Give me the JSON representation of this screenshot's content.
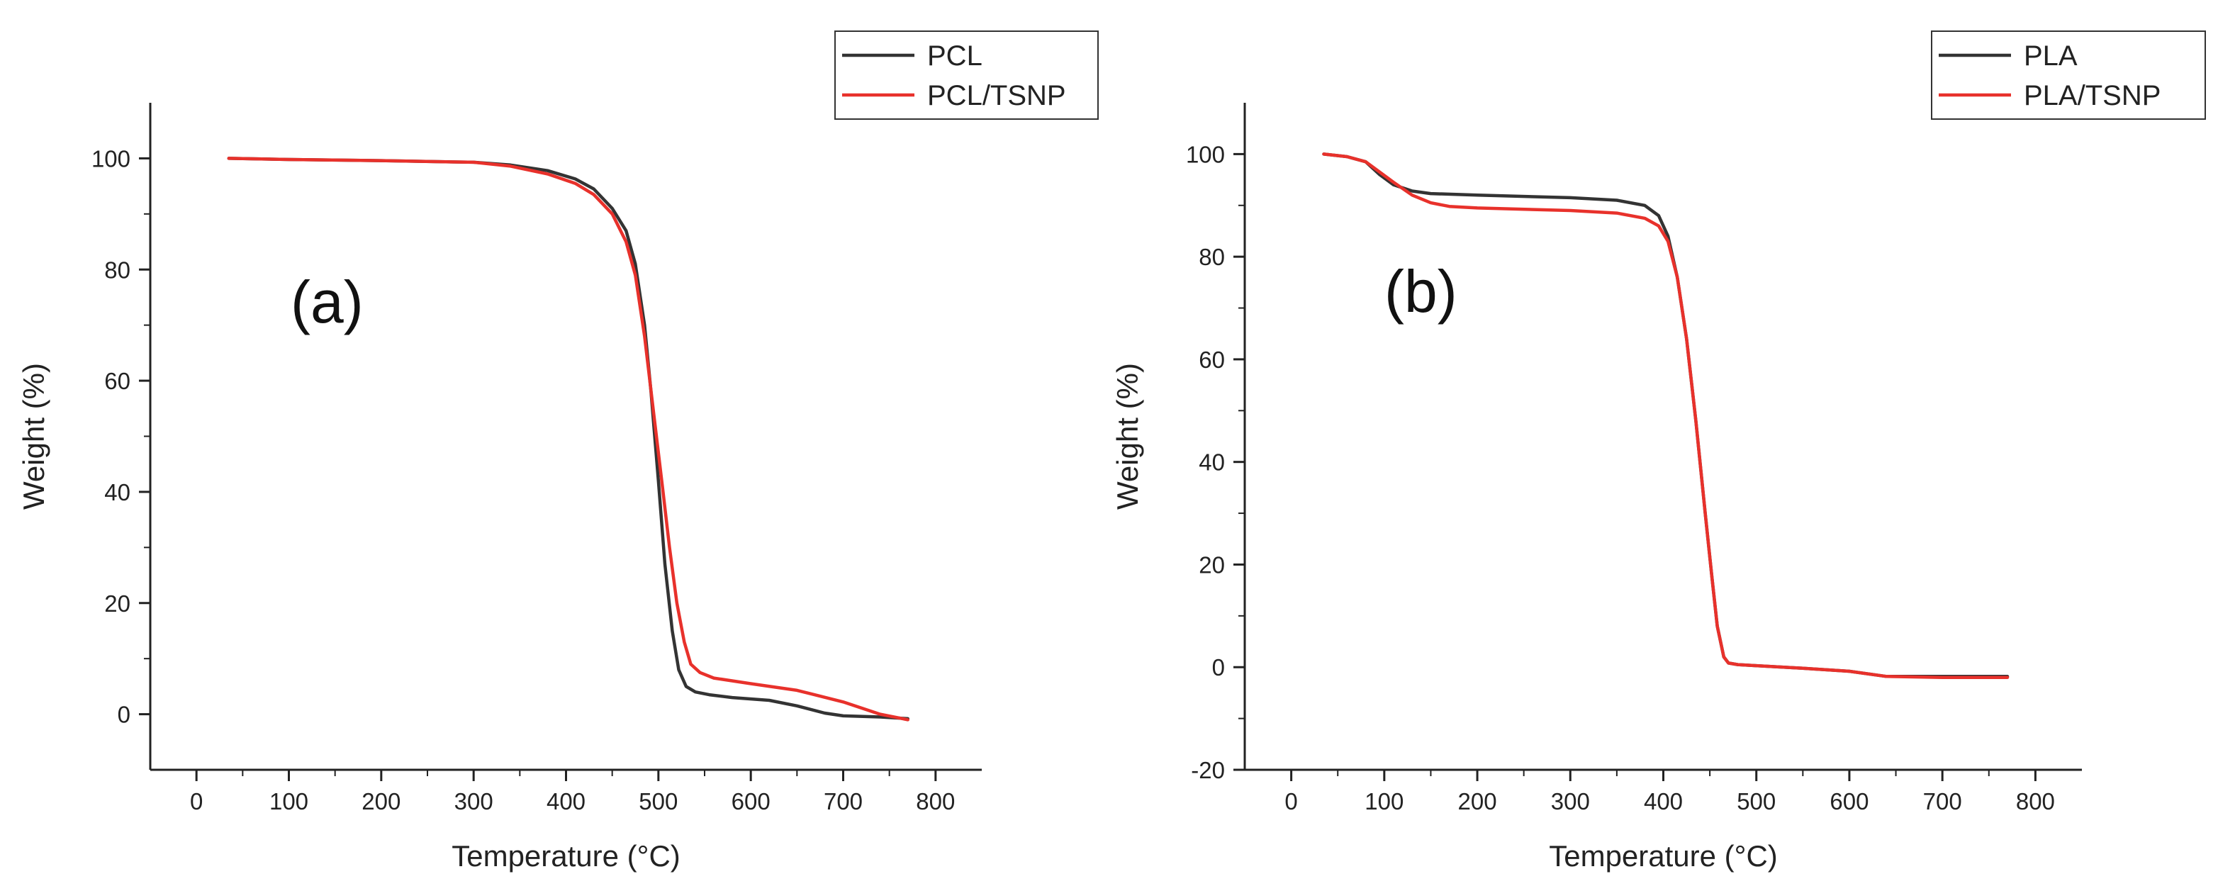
{
  "chart_data": [
    {
      "type": "line",
      "panel_label": "(a)",
      "xlabel": "Temperature (°C)",
      "ylabel": "Weight (%)",
      "xlim": [
        -50,
        850
      ],
      "ylim": [
        -10,
        110
      ],
      "xticks": [
        0,
        100,
        200,
        300,
        400,
        500,
        600,
        700,
        800
      ],
      "yticks": [
        0,
        20,
        40,
        60,
        80,
        100
      ],
      "legend_position": "top-right",
      "series": [
        {
          "name": "PCL",
          "color": "#333333",
          "x": [
            35,
            100,
            200,
            300,
            340,
            380,
            410,
            430,
            450,
            465,
            475,
            485,
            492,
            500,
            507,
            515,
            522,
            530,
            540,
            555,
            580,
            620,
            650,
            680,
            700,
            740,
            770
          ],
          "y": [
            100,
            99.8,
            99.6,
            99.3,
            98.8,
            97.8,
            96.3,
            94.5,
            91,
            87,
            81,
            70,
            58,
            42,
            27,
            15,
            8,
            5,
            4,
            3.5,
            3,
            2.5,
            1.5,
            0.2,
            -0.3,
            -0.5,
            -0.8
          ]
        },
        {
          "name": "PCL/TSNP",
          "color": "#e8312b",
          "x": [
            35,
            100,
            200,
            300,
            340,
            380,
            410,
            430,
            450,
            465,
            475,
            485,
            495,
            505,
            512,
            520,
            528,
            535,
            545,
            560,
            600,
            650,
            700,
            740,
            770
          ],
          "y": [
            100,
            99.8,
            99.6,
            99.3,
            98.6,
            97.2,
            95.5,
            93.5,
            90,
            85,
            79,
            68,
            54,
            40,
            30,
            20,
            13,
            9,
            7.5,
            6.5,
            5.5,
            4.3,
            2.2,
            0,
            -1
          ]
        }
      ]
    },
    {
      "type": "line",
      "panel_label": "(b)",
      "xlabel": "Temperature (°C)",
      "ylabel": "Weight (%)",
      "xlim": [
        -50,
        850
      ],
      "ylim": [
        -20,
        110
      ],
      "xticks": [
        0,
        100,
        200,
        300,
        400,
        500,
        600,
        700,
        800
      ],
      "yticks": [
        -20,
        0,
        20,
        40,
        60,
        80,
        100
      ],
      "legend_position": "top-right",
      "series": [
        {
          "name": "PLA",
          "color": "#333333",
          "x": [
            35,
            60,
            80,
            95,
            110,
            130,
            150,
            200,
            300,
            350,
            380,
            395,
            405,
            415,
            425,
            435,
            445,
            452,
            458,
            465,
            470,
            480,
            500,
            550,
            600,
            640,
            700,
            770
          ],
          "y": [
            100,
            99.5,
            98.5,
            96,
            94,
            92.8,
            92.3,
            92,
            91.5,
            91,
            90,
            88,
            84,
            76,
            64,
            48,
            30,
            18,
            8,
            2,
            0.8,
            0.5,
            0.3,
            -0.2,
            -0.8,
            -1.8,
            -1.8,
            -1.8
          ]
        },
        {
          "name": "PLA/TSNP",
          "color": "#e8312b",
          "x": [
            35,
            60,
            80,
            95,
            110,
            130,
            150,
            170,
            200,
            300,
            350,
            380,
            395,
            405,
            415,
            425,
            435,
            445,
            452,
            458,
            465,
            470,
            480,
            500,
            550,
            600,
            640,
            700,
            770
          ],
          "y": [
            100,
            99.5,
            98.5,
            96.5,
            94.5,
            92,
            90.5,
            89.8,
            89.5,
            89,
            88.5,
            87.5,
            86,
            83,
            76,
            64,
            48,
            30,
            18,
            8,
            2,
            0.8,
            0.5,
            0.3,
            -0.2,
            -0.8,
            -1.8,
            -2,
            -2
          ]
        }
      ]
    }
  ]
}
